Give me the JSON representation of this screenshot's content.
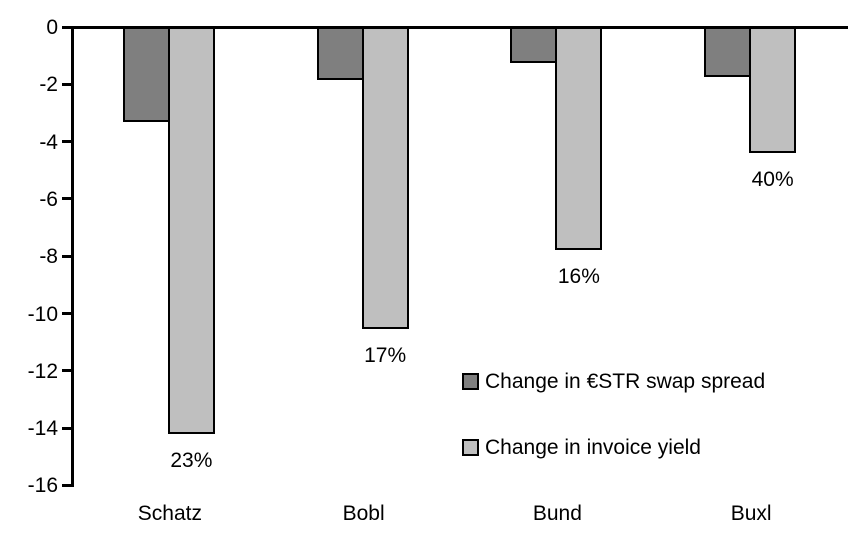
{
  "chart_data": {
    "type": "bar",
    "title": "",
    "xlabel": "",
    "ylabel": "",
    "categories": [
      "Schatz",
      "Bobl",
      "Bund",
      "Buxl"
    ],
    "series": [
      {
        "name": "Change in €STR swap spread",
        "color": "#7f7f7f",
        "values": [
          -3.3,
          -1.85,
          -1.25,
          -1.75
        ]
      },
      {
        "name": "Change in invoice yield",
        "color": "#bfbfbf",
        "values": [
          -14.2,
          -10.55,
          -7.8,
          -4.4
        ]
      }
    ],
    "bar_labels": {
      "series": "Change in invoice yield",
      "values": [
        "23%",
        "17%",
        "16%",
        "40%"
      ]
    },
    "ylim": [
      -16,
      0
    ],
    "yticks": [
      0,
      -2,
      -4,
      -6,
      -8,
      -10,
      -12,
      -14,
      -16
    ],
    "grid": false,
    "legend_position": "inside-right",
    "bar_border_color": "#000000",
    "axis_color": "#000000",
    "background_color": "#ffffff"
  }
}
